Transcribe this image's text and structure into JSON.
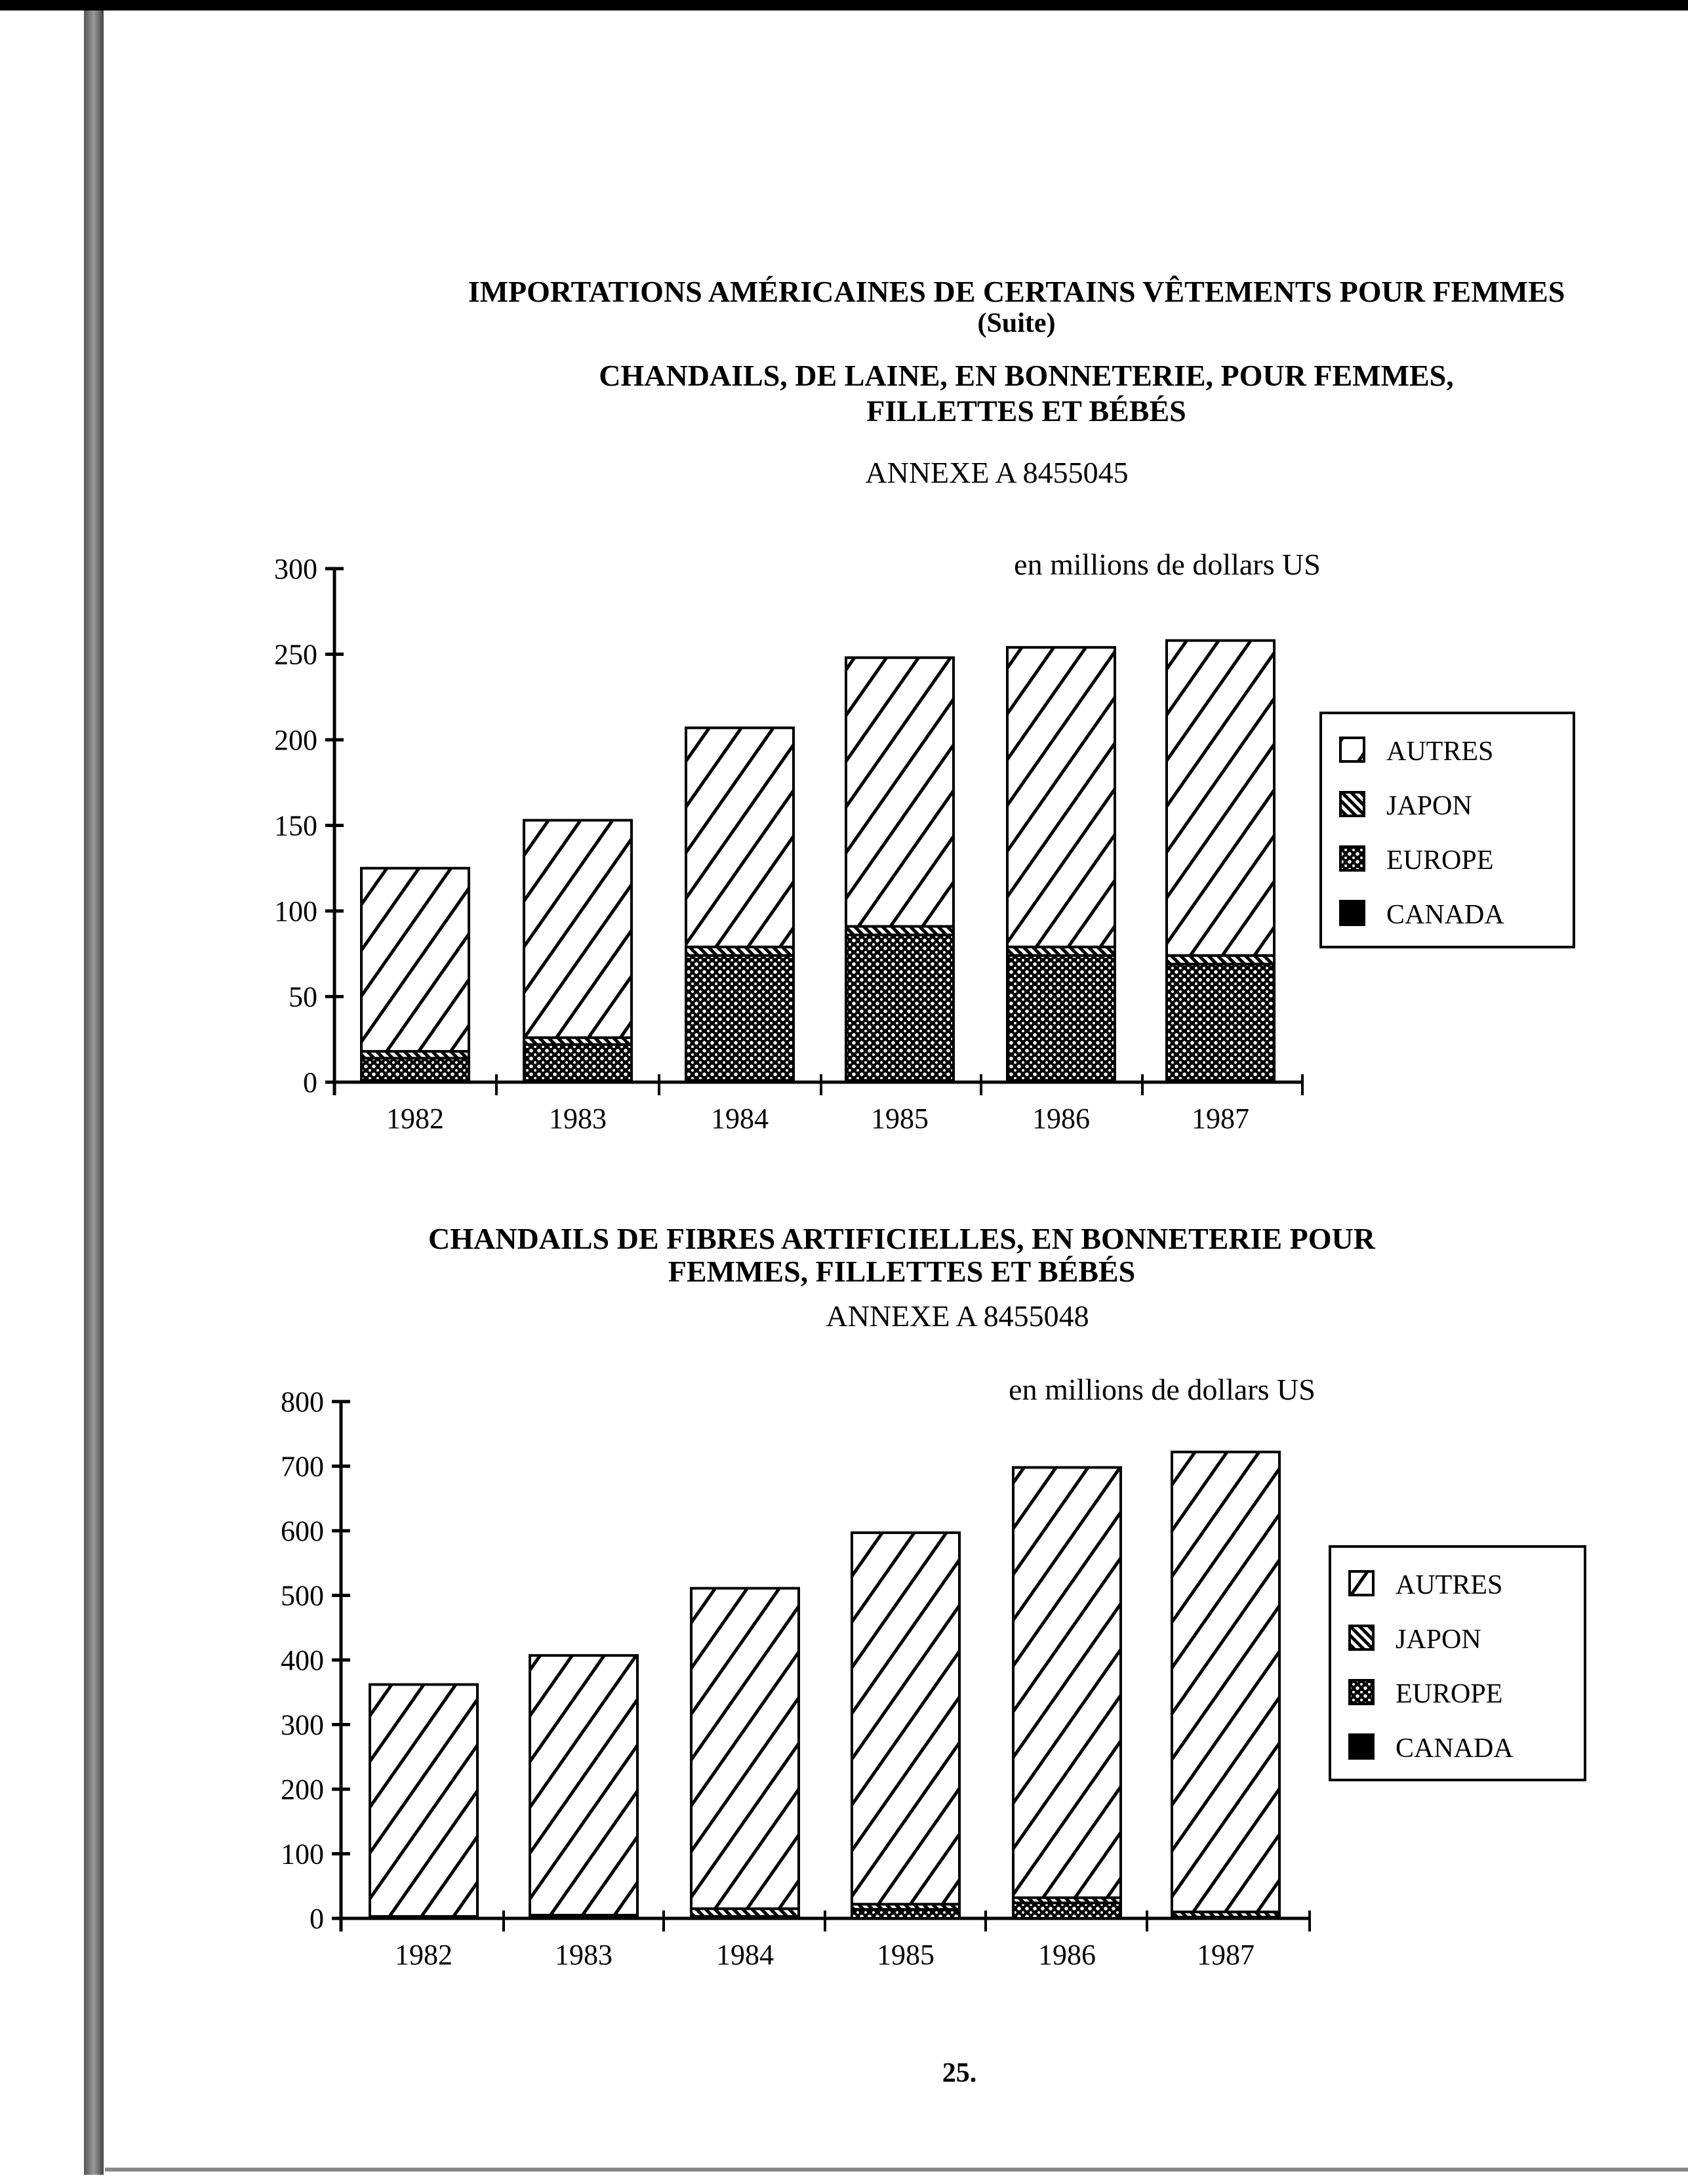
{
  "page": {
    "title": "IMPORTATIONS AMÉRICAINES DE CERTAINS VÊTEMENTS POUR FEMMES",
    "subtitle": "(Suite)",
    "page_number": "25."
  },
  "chart_data": [
    {
      "type": "bar",
      "stacked": true,
      "title_line1": "CHANDAILS, DE LAINE, EN BONNETERIE, POUR FEMMES,",
      "title_line2": "FILLETTES ET BÉBÉS",
      "annex": "ANNEXE A  8455045",
      "unit_label": "en millions de dollars US",
      "categories": [
        "1982",
        "1983",
        "1984",
        "1985",
        "1986",
        "1987"
      ],
      "ylim": [
        0,
        300
      ],
      "yticks": [
        "0",
        "50",
        "100",
        "150",
        "200",
        "250",
        "300"
      ],
      "legend": [
        "AUTRES",
        "JAPON",
        "EUROPE",
        "CANADA"
      ],
      "legend_position": "right",
      "series": [
        {
          "name": "CANADA",
          "values": [
            1,
            1,
            1,
            1,
            1,
            1
          ]
        },
        {
          "name": "EUROPE",
          "values": [
            13,
            21,
            73,
            85,
            73,
            68
          ]
        },
        {
          "name": "JAPON",
          "values": [
            4,
            4,
            5,
            5,
            5,
            5
          ]
        },
        {
          "name": "AUTRES",
          "values": [
            107,
            127,
            128,
            157,
            175,
            184
          ]
        }
      ]
    },
    {
      "type": "bar",
      "stacked": true,
      "title_line1": "CHANDAILS DE FIBRES ARTIFICIELLES, EN BONNETERIE POUR",
      "title_line2": "FEMMES, FILLETTES ET BÉBÉS",
      "annex": "ANNEXE A  8455048",
      "unit_label": "en millions de dollars US",
      "categories": [
        "1982",
        "1983",
        "1984",
        "1985",
        "1986",
        "1987"
      ],
      "ylim": [
        0,
        800
      ],
      "yticks": [
        "0",
        "100",
        "200",
        "300",
        "400",
        "500",
        "600",
        "700",
        "800"
      ],
      "legend": [
        "AUTRES",
        "JAPON",
        "EUROPE",
        "CANADA"
      ],
      "legend_position": "right",
      "series": [
        {
          "name": "CANADA",
          "values": [
            0,
            0,
            0,
            0,
            0,
            0
          ]
        },
        {
          "name": "EUROPE",
          "values": [
            1,
            1,
            3,
            14,
            24,
            2
          ]
        },
        {
          "name": "JAPON",
          "values": [
            2,
            4,
            12,
            8,
            8,
            8
          ]
        },
        {
          "name": "AUTRES",
          "values": [
            359,
            402,
            496,
            575,
            666,
            712
          ]
        }
      ]
    }
  ]
}
